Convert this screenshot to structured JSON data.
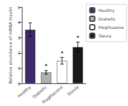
{
  "chart_data": {
    "type": "bar",
    "categories": [
      "Healthy",
      "Diabetic",
      "Pioglitazone",
      "Stevia"
    ],
    "values": [
      3.52,
      0.72,
      1.48,
      2.38
    ],
    "errors": [
      0.45,
      0.12,
      0.22,
      0.32
    ],
    "colors": [
      "#3d2b6b",
      "#b0b0b0",
      "#ffffff",
      "#1a1a1a"
    ],
    "ylabel": "Relative abundance of mRNA Insulin",
    "ylim": [
      0,
      5
    ],
    "yticks": [
      0,
      1,
      2,
      3,
      4,
      5
    ],
    "annotations": [
      {
        "text": "*",
        "category": "Diabetic"
      },
      {
        "text": "*",
        "category": "Pioglitazone"
      },
      {
        "text": "*",
        "category": "Stevia"
      }
    ],
    "legend": "upper right",
    "grid": false
  }
}
